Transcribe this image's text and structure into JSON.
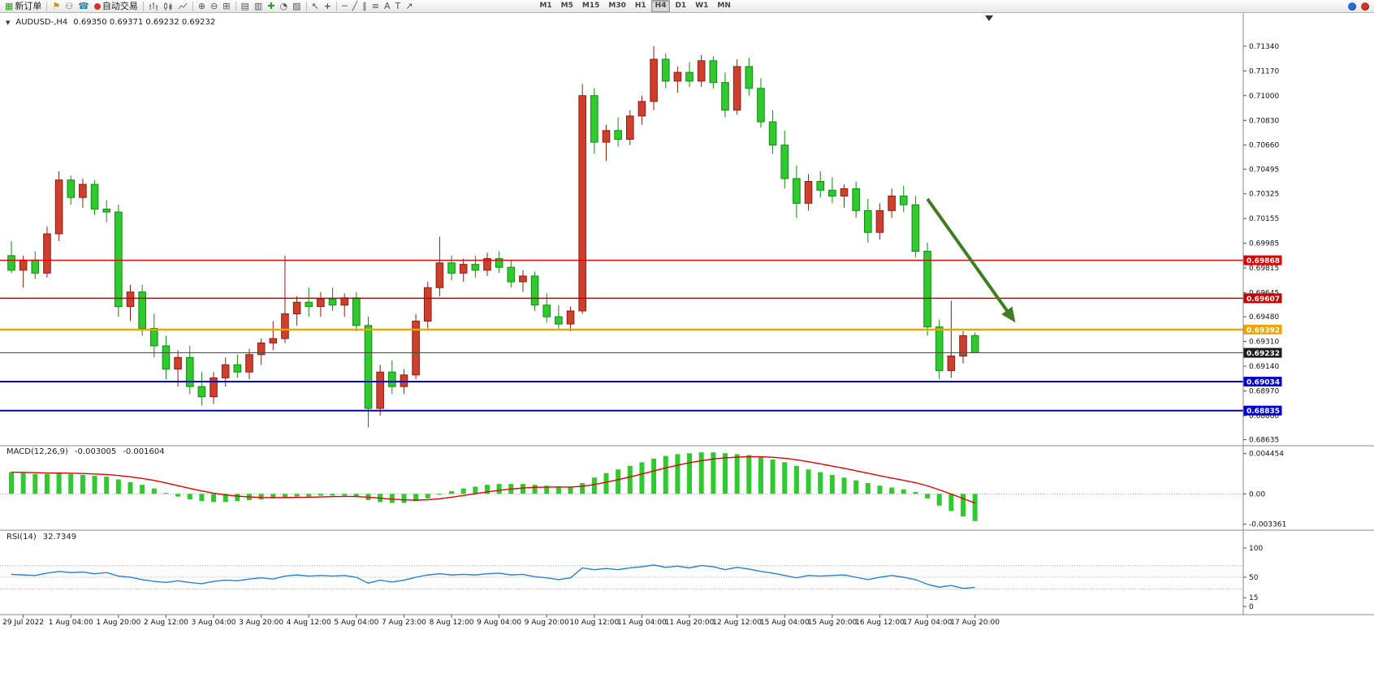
{
  "toolbar": {
    "new_order": "新订单",
    "autotrading": "自动交易",
    "timeframes": [
      "M1",
      "M5",
      "M15",
      "M30",
      "H1",
      "H4",
      "D1",
      "W1",
      "MN"
    ],
    "active_timeframe": "H4"
  },
  "chart_header": {
    "symbol_period": "AUDUSD-,H4",
    "ohlc": "0.69350 0.69371 0.69232 0.69232"
  },
  "macd_panel": {
    "name": "MACD(12,26,9)",
    "main_value": "-0.003005",
    "signal_value": "-0.001604",
    "axis_labels": [
      {
        "text": "0.004454",
        "value": 0.004454
      },
      {
        "text": "0.00",
        "value": 0
      },
      {
        "text": "-0.003361",
        "value": -0.003361
      }
    ]
  },
  "rsi_panel": {
    "name": "RSI(14)",
    "value": "32.7349",
    "axis_labels": [
      {
        "text": "100",
        "value": 100
      },
      {
        "text": "50",
        "value": 50
      },
      {
        "text": "15",
        "value": 15
      },
      {
        "text": "0",
        "value": 0
      }
    ]
  },
  "price_axis": {
    "tick_labels": [
      "0.71340",
      "0.71170",
      "0.71000",
      "0.70830",
      "0.70660",
      "0.70495",
      "0.70325",
      "0.70155",
      "0.69985",
      "0.69815",
      "0.69645",
      "0.69480",
      "0.69310",
      "0.69140",
      "0.68970",
      "0.68800",
      "0.68635"
    ]
  },
  "time_axis": {
    "labels": [
      {
        "text": "29 Jul 2022",
        "bar": 1
      },
      {
        "text": "1 Aug 04:00",
        "bar": 5
      },
      {
        "text": "1 Aug 20:00",
        "bar": 9
      },
      {
        "text": "2 Aug 12:00",
        "bar": 13
      },
      {
        "text": "3 Aug 04:00",
        "bar": 17
      },
      {
        "text": "3 Aug 20:00",
        "bar": 21
      },
      {
        "text": "4 Aug 12:00",
        "bar": 25
      },
      {
        "text": "5 Aug 04:00",
        "bar": 29
      },
      {
        "text": "7 Aug 23:00",
        "bar": 33
      },
      {
        "text": "8 Aug 12:00",
        "bar": 37
      },
      {
        "text": "9 Aug 04:00",
        "bar": 41
      },
      {
        "text": "9 Aug 20:00",
        "bar": 45
      },
      {
        "text": "10 Aug 12:00",
        "bar": 49
      },
      {
        "text": "11 Aug 04:00",
        "bar": 53
      },
      {
        "text": "11 Aug 20:00",
        "bar": 57
      },
      {
        "text": "12 Aug 12:00",
        "bar": 61
      },
      {
        "text": "15 Aug 04:00",
        "bar": 65
      },
      {
        "text": "15 Aug 20:00",
        "bar": 69
      },
      {
        "text": "16 Aug 12:00",
        "bar": 73
      },
      {
        "text": "17 Aug 04:00",
        "bar": 77
      },
      {
        "text": "17 Aug 20:00",
        "bar": 81
      }
    ]
  },
  "colors": {
    "up_fill": "#cf3f2e",
    "up_stroke": "#8e1d10",
    "down_fill": "#30c930",
    "down_stroke": "#0e8c0e",
    "macd_hist": "#30c930",
    "macd_signal": "#e00000",
    "rsi_line": "#2a7fd4",
    "arrow": "#3f7d20",
    "axis_text": "#111111",
    "grid": "#b0b0b0"
  },
  "chart_data": {
    "type": "candlestick",
    "symbol": "AUDUSD",
    "period": "H4",
    "price_range": [
      0.6861,
      0.7149
    ],
    "candles": [
      [
        0.699,
        0.7,
        0.6978,
        0.698
      ],
      [
        0.698,
        0.699,
        0.6968,
        0.6987
      ],
      [
        0.6987,
        0.6993,
        0.6974,
        0.6978
      ],
      [
        0.6978,
        0.701,
        0.6975,
        0.7005
      ],
      [
        0.7005,
        0.7048,
        0.7,
        0.7042
      ],
      [
        0.7042,
        0.7045,
        0.7025,
        0.703
      ],
      [
        0.703,
        0.7043,
        0.7023,
        0.7039
      ],
      [
        0.7039,
        0.7042,
        0.7018,
        0.7022
      ],
      [
        0.7022,
        0.7028,
        0.7013,
        0.702
      ],
      [
        0.702,
        0.7025,
        0.6948,
        0.6955
      ],
      [
        0.6955,
        0.697,
        0.6945,
        0.6965
      ],
      [
        0.6965,
        0.697,
        0.6935,
        0.694
      ],
      [
        0.694,
        0.695,
        0.692,
        0.6928
      ],
      [
        0.6928,
        0.6935,
        0.6905,
        0.6912
      ],
      [
        0.6912,
        0.6925,
        0.69,
        0.692
      ],
      [
        0.692,
        0.6928,
        0.6895,
        0.69
      ],
      [
        0.69,
        0.691,
        0.6887,
        0.6893
      ],
      [
        0.6893,
        0.691,
        0.6888,
        0.6906
      ],
      [
        0.6906,
        0.692,
        0.69,
        0.6915
      ],
      [
        0.6915,
        0.6922,
        0.6906,
        0.691
      ],
      [
        0.691,
        0.6926,
        0.6905,
        0.6922
      ],
      [
        0.6922,
        0.6933,
        0.6915,
        0.693
      ],
      [
        0.693,
        0.6945,
        0.6925,
        0.6933
      ],
      [
        0.6933,
        0.699,
        0.693,
        0.695
      ],
      [
        0.695,
        0.6962,
        0.6942,
        0.6958
      ],
      [
        0.6958,
        0.6968,
        0.6948,
        0.6955
      ],
      [
        0.6955,
        0.6965,
        0.6948,
        0.696
      ],
      [
        0.696,
        0.6968,
        0.6952,
        0.6956
      ],
      [
        0.6956,
        0.6964,
        0.6948,
        0.6961
      ],
      [
        0.6961,
        0.6965,
        0.6938,
        0.6942
      ],
      [
        0.6942,
        0.6948,
        0.6872,
        0.6885
      ],
      [
        0.6885,
        0.6915,
        0.688,
        0.691
      ],
      [
        0.691,
        0.6918,
        0.6895,
        0.69
      ],
      [
        0.69,
        0.6912,
        0.6895,
        0.6908
      ],
      [
        0.6908,
        0.695,
        0.6905,
        0.6945
      ],
      [
        0.6945,
        0.6972,
        0.694,
        0.6968
      ],
      [
        0.6968,
        0.7003,
        0.6962,
        0.6985
      ],
      [
        0.6985,
        0.699,
        0.6973,
        0.6978
      ],
      [
        0.6978,
        0.6988,
        0.6972,
        0.6984
      ],
      [
        0.6984,
        0.699,
        0.6975,
        0.698
      ],
      [
        0.698,
        0.6992,
        0.6976,
        0.6988
      ],
      [
        0.6988,
        0.6993,
        0.6978,
        0.6982
      ],
      [
        0.6982,
        0.6987,
        0.6968,
        0.6972
      ],
      [
        0.6972,
        0.698,
        0.6965,
        0.6976
      ],
      [
        0.6976,
        0.6979,
        0.6952,
        0.6956
      ],
      [
        0.6956,
        0.6964,
        0.6944,
        0.6948
      ],
      [
        0.6948,
        0.6956,
        0.694,
        0.6943
      ],
      [
        0.6943,
        0.6955,
        0.6938,
        0.6952
      ],
      [
        0.6952,
        0.7108,
        0.695,
        0.71
      ],
      [
        0.71,
        0.7105,
        0.706,
        0.7068
      ],
      [
        0.7068,
        0.708,
        0.7055,
        0.7076
      ],
      [
        0.7076,
        0.7085,
        0.7065,
        0.707
      ],
      [
        0.707,
        0.709,
        0.7066,
        0.7086
      ],
      [
        0.7086,
        0.71,
        0.708,
        0.7096
      ],
      [
        0.7096,
        0.7134,
        0.709,
        0.7125
      ],
      [
        0.7125,
        0.7129,
        0.7105,
        0.711
      ],
      [
        0.711,
        0.712,
        0.7102,
        0.7116
      ],
      [
        0.7116,
        0.7123,
        0.7106,
        0.711
      ],
      [
        0.711,
        0.7128,
        0.7106,
        0.7124
      ],
      [
        0.7124,
        0.7127,
        0.7105,
        0.7109
      ],
      [
        0.7109,
        0.7116,
        0.7085,
        0.709
      ],
      [
        0.709,
        0.7125,
        0.7087,
        0.712
      ],
      [
        0.712,
        0.7126,
        0.71,
        0.7105
      ],
      [
        0.7105,
        0.7112,
        0.7078,
        0.7082
      ],
      [
        0.7082,
        0.709,
        0.706,
        0.7066
      ],
      [
        0.7066,
        0.7076,
        0.7036,
        0.7043
      ],
      [
        0.7043,
        0.7052,
        0.7016,
        0.7026
      ],
      [
        0.7026,
        0.7046,
        0.7021,
        0.7041
      ],
      [
        0.7041,
        0.7048,
        0.703,
        0.7035
      ],
      [
        0.7035,
        0.7044,
        0.7026,
        0.7031
      ],
      [
        0.7031,
        0.7039,
        0.7023,
        0.7036
      ],
      [
        0.7036,
        0.7041,
        0.7016,
        0.7021
      ],
      [
        0.7021,
        0.7029,
        0.6999,
        0.7006
      ],
      [
        0.7006,
        0.7026,
        0.7001,
        0.7021
      ],
      [
        0.7021,
        0.7036,
        0.7016,
        0.7031
      ],
      [
        0.7031,
        0.7038,
        0.702,
        0.7025
      ],
      [
        0.7025,
        0.7031,
        0.6989,
        0.6993
      ],
      [
        0.6993,
        0.6999,
        0.6935,
        0.6941
      ],
      [
        0.6941,
        0.6946,
        0.6905,
        0.6911
      ],
      [
        0.6911,
        0.6959,
        0.6906,
        0.6921
      ],
      [
        0.6921,
        0.6938,
        0.6916,
        0.6935
      ],
      [
        0.6935,
        0.69371,
        0.69232,
        0.69232
      ]
    ],
    "hlines": [
      {
        "price": 0.69868,
        "color": "#e00000",
        "width": 1.4,
        "label": "0.69868",
        "label_bg": "#e00000"
      },
      {
        "price": 0.69607,
        "color": "#c40000",
        "width": 1.4,
        "label": "0.69607",
        "label_bg": "#c40000"
      },
      {
        "price": 0.69392,
        "color": "#f0a400",
        "width": 2.4,
        "label": "0.69392",
        "label_bg": "#f0a400"
      },
      {
        "price": 0.69232,
        "color": "#4a4a4a",
        "width": 1.0,
        "label": "0.69232",
        "label_bg": "#1c1c1c"
      },
      {
        "price": 0.69034,
        "color": "#0000d2",
        "width": 2.0,
        "label": "0.69034",
        "label_bg": "#0000d2"
      },
      {
        "price": 0.68835,
        "color": "#0000d2",
        "width": 2.0,
        "label": "0.68835",
        "label_bg": "#0000d2"
      }
    ],
    "current_price": 0.69232,
    "arrow": {
      "bar_start": 77,
      "price_start": 0.7029,
      "bar_end": 84.4,
      "price_end": 0.6944,
      "width": 4
    },
    "macd": {
      "range": [
        -0.00375,
        0.0047
      ],
      "signal_period": 9,
      "values": [
        0.0024,
        0.0023,
        0.0022,
        0.0022,
        0.0023,
        0.0022,
        0.0021,
        0.002,
        0.0019,
        0.0016,
        0.0013,
        0.001,
        0.0006,
        0.0001,
        -0.0003,
        -0.0006,
        -0.0008,
        -0.0009,
        -0.0009,
        -0.0008,
        -0.0007,
        -0.0006,
        -0.0005,
        -0.0004,
        -0.0003,
        -0.0003,
        -0.0002,
        -0.0002,
        -0.0002,
        -0.0003,
        -0.0007,
        -0.0009,
        -0.001,
        -0.001,
        -0.0008,
        -0.0005,
        -0.0001,
        0.0003,
        0.0006,
        0.0008,
        0.001,
        0.0011,
        0.0011,
        0.0011,
        0.001,
        0.0009,
        0.0008,
        0.0007,
        0.0012,
        0.0018,
        0.0023,
        0.0027,
        0.0031,
        0.0035,
        0.0039,
        0.0042,
        0.0044,
        0.0045,
        0.0046,
        0.0046,
        0.0045,
        0.0044,
        0.0043,
        0.0041,
        0.0038,
        0.0035,
        0.0031,
        0.0027,
        0.0024,
        0.0021,
        0.0018,
        0.0015,
        0.0012,
        0.0009,
        0.0007,
        0.0005,
        0.0002,
        -0.0005,
        -0.0013,
        -0.0019,
        -0.0025,
        -0.003005
      ]
    },
    "rsi": {
      "range": [
        0,
        100
      ],
      "levels": [
        70,
        50,
        30
      ],
      "values": [
        55,
        54,
        53,
        57,
        60,
        58,
        59,
        56,
        58,
        52,
        50,
        46,
        43,
        41,
        44,
        41,
        39,
        43,
        45,
        44,
        47,
        49,
        47,
        52,
        54,
        52,
        53,
        52,
        53,
        50,
        40,
        45,
        42,
        45,
        50,
        54,
        56,
        54,
        55,
        54,
        56,
        57,
        54,
        55,
        51,
        49,
        46,
        49,
        66,
        63,
        65,
        63,
        66,
        68,
        71,
        67,
        69,
        66,
        70,
        68,
        63,
        67,
        64,
        60,
        57,
        53,
        49,
        53,
        52,
        53,
        54,
        50,
        46,
        50,
        53,
        50,
        46,
        38,
        33,
        36,
        31,
        32.7
      ]
    }
  }
}
